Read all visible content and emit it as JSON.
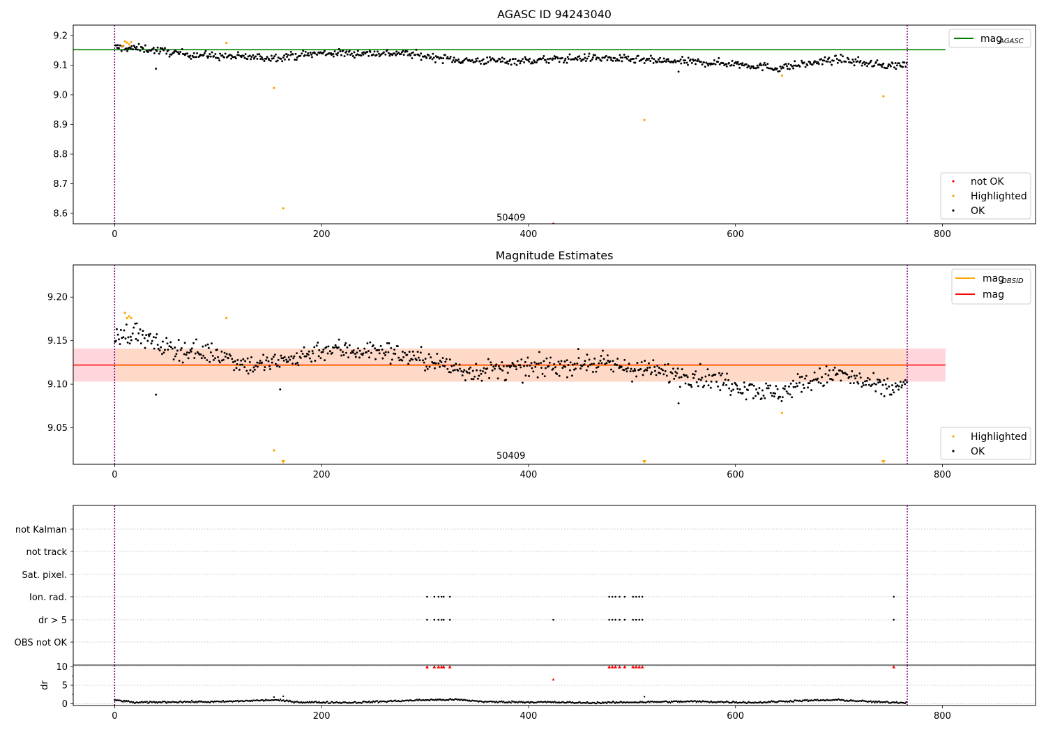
{
  "colors": {
    "ok": "#000000",
    "highlighted": "#ffa500",
    "not_ok": "#ff0000",
    "agasc_line": "#008000",
    "obsid_line": "#ffa500",
    "mag_line": "#ff0000",
    "band_outer": "#ffd6dc",
    "band_inner": "#ffd9c8",
    "event_line": "#800080"
  },
  "chart_data": [
    {
      "id": "agasc",
      "type": "scatter",
      "title": "AGASC ID 94243040",
      "xlim": [
        -40,
        890
      ],
      "ylim": [
        8.565,
        9.235
      ],
      "xticks": [
        0,
        200,
        400,
        600,
        800
      ],
      "yticks": [
        8.6,
        8.7,
        8.8,
        8.9,
        9.0,
        9.1,
        9.2
      ],
      "ytick_labels": [
        "8.6",
        "8.7",
        "8.8",
        "8.9",
        "9.0",
        "9.1",
        "9.2"
      ],
      "annotation": {
        "text": "50409",
        "x": 383,
        "y": 8.58
      },
      "vlines": [
        0,
        766
      ],
      "hlines": [
        {
          "name": "mag_AGASC",
          "y": 9.152,
          "x_range": [
            -40,
            803
          ]
        }
      ],
      "line_legend": {
        "placement": "top-right",
        "entries": [
          {
            "label": "mag",
            "sub": "AGASC",
            "color_key": "agasc_line"
          }
        ]
      },
      "point_legend": {
        "placement": "bottom-right",
        "entries": [
          {
            "label": "not OK",
            "color_key": "not_ok"
          },
          {
            "label": "Highlighted",
            "color_key": "highlighted"
          },
          {
            "label": "OK",
            "color_key": "ok"
          }
        ]
      },
      "trend": [
        [
          0,
          9.16
        ],
        [
          30,
          9.155
        ],
        [
          60,
          9.14
        ],
        [
          100,
          9.13
        ],
        [
          150,
          9.125
        ],
        [
          200,
          9.14
        ],
        [
          280,
          9.14
        ],
        [
          300,
          9.13
        ],
        [
          340,
          9.115
        ],
        [
          400,
          9.115
        ],
        [
          460,
          9.125
        ],
        [
          520,
          9.115
        ],
        [
          560,
          9.11
        ],
        [
          600,
          9.105
        ],
        [
          640,
          9.09
        ],
        [
          680,
          9.11
        ],
        [
          700,
          9.12
        ],
        [
          740,
          9.1
        ],
        [
          766,
          9.1
        ]
      ],
      "n_points": 760,
      "noise": 0.012,
      "highlighted": [
        [
          8,
          9.165
        ],
        [
          10,
          9.18
        ],
        [
          12,
          9.176
        ],
        [
          14,
          9.17
        ],
        [
          16,
          9.178
        ],
        [
          108,
          9.175
        ],
        [
          154,
          9.023
        ],
        [
          163,
          8.617
        ],
        [
          512,
          8.915
        ],
        [
          645,
          9.065
        ],
        [
          743,
          8.995
        ]
      ],
      "not_ok": [
        [
          424,
          8.565
        ]
      ],
      "outliers_ok": [
        [
          40,
          9.088
        ],
        [
          545,
          9.078
        ]
      ]
    },
    {
      "id": "estimates",
      "type": "scatter",
      "title": "Magnitude Estimates",
      "xlim": [
        -40,
        890
      ],
      "ylim": [
        9.008,
        9.237
      ],
      "xticks": [
        0,
        200,
        400,
        600,
        800
      ],
      "yticks": [
        9.05,
        9.1,
        9.15,
        9.2
      ],
      "ytick_labels": [
        "9.05",
        "9.10",
        "9.15",
        "9.20"
      ],
      "annotation": {
        "text": "50409",
        "x": 383,
        "y": 9.016
      },
      "vlines": [
        0,
        766
      ],
      "mag_line": {
        "y": 9.122,
        "x_range": [
          -40,
          803
        ]
      },
      "band_outer": {
        "y": [
          9.103,
          9.141
        ],
        "x_range": [
          -40,
          803
        ]
      },
      "band_inner": {
        "y": [
          9.103,
          9.141
        ],
        "x_range": [
          0,
          766
        ]
      },
      "line_legend": {
        "placement": "top-right",
        "entries": [
          {
            "label": "mag",
            "sub": "OBSID",
            "color_key": "obsid_line"
          },
          {
            "label": "mag",
            "sub": "",
            "color_key": "mag_line"
          }
        ]
      },
      "point_legend": {
        "placement": "bottom-right",
        "entries": [
          {
            "label": "Highlighted",
            "color_key": "highlighted"
          },
          {
            "label": "OK",
            "color_key": "ok"
          }
        ]
      },
      "trend": [
        [
          0,
          9.155
        ],
        [
          20,
          9.16
        ],
        [
          40,
          9.145
        ],
        [
          60,
          9.14
        ],
        [
          100,
          9.135
        ],
        [
          130,
          9.122
        ],
        [
          160,
          9.125
        ],
        [
          200,
          9.14
        ],
        [
          260,
          9.138
        ],
        [
          300,
          9.128
        ],
        [
          340,
          9.115
        ],
        [
          400,
          9.118
        ],
        [
          460,
          9.125
        ],
        [
          520,
          9.115
        ],
        [
          560,
          9.11
        ],
        [
          600,
          9.1
        ],
        [
          640,
          9.088
        ],
        [
          660,
          9.1
        ],
        [
          700,
          9.112
        ],
        [
          740,
          9.095
        ],
        [
          766,
          9.098
        ]
      ],
      "n_points": 760,
      "noise": 0.011,
      "highlighted": [
        [
          10,
          9.182
        ],
        [
          12,
          9.176
        ],
        [
          14,
          9.178
        ],
        [
          16,
          9.176
        ],
        [
          108,
          9.176
        ],
        [
          154,
          9.024
        ],
        [
          645,
          9.067
        ]
      ],
      "lower_limits": [
        163,
        512,
        743
      ],
      "outliers_ok": [
        [
          40,
          9.088
        ],
        [
          160,
          9.094
        ],
        [
          545,
          9.078
        ]
      ]
    },
    {
      "id": "flags",
      "type": "scatter",
      "xlim": [
        -40,
        890
      ],
      "rows": [
        "not Kalman",
        "not track",
        "Sat. pixel.",
        "Ion. rad.",
        "dr > 5",
        "OBS not OK"
      ],
      "vlines": [
        0,
        766
      ],
      "ion_rad_x": [
        302,
        309,
        313,
        316,
        318,
        324,
        478,
        481,
        484,
        488,
        493,
        501,
        504,
        507,
        510,
        753
      ],
      "dr_gt5_x": [
        302,
        309,
        313,
        316,
        318,
        324,
        424,
        478,
        481,
        484,
        488,
        493,
        501,
        504,
        507,
        510,
        753
      ]
    },
    {
      "id": "dr",
      "type": "scatter",
      "ylabel": "dr",
      "xlim": [
        -40,
        890
      ],
      "ylim": [
        -0.5,
        10.5
      ],
      "xticks": [
        0,
        200,
        400,
        600,
        800
      ],
      "yticks": [
        0,
        5,
        10
      ],
      "ytick_labels": [
        "0",
        "5",
        "10"
      ],
      "vlines": [
        0,
        766
      ],
      "clipped_x": [
        302,
        309,
        313,
        316,
        318,
        324,
        478,
        481,
        484,
        488,
        493,
        501,
        504,
        507,
        510,
        753
      ],
      "mid_points": [
        [
          424,
          6.6
        ]
      ],
      "extra_points": [
        [
          154,
          1.8
        ],
        [
          163,
          2.0
        ],
        [
          512,
          1.9
        ]
      ],
      "trend": [
        [
          0,
          1.0
        ],
        [
          20,
          0.3
        ],
        [
          60,
          0.5
        ],
        [
          100,
          0.5
        ],
        [
          154,
          1.0
        ],
        [
          180,
          0.4
        ],
        [
          230,
          0.3
        ],
        [
          300,
          1.0
        ],
        [
          330,
          1.1
        ],
        [
          360,
          0.5
        ],
        [
          420,
          0.4
        ],
        [
          460,
          0.2
        ],
        [
          500,
          0.4
        ],
        [
          560,
          0.6
        ],
        [
          620,
          0.3
        ],
        [
          660,
          0.8
        ],
        [
          700,
          1.0
        ],
        [
          740,
          0.4
        ],
        [
          766,
          0.3
        ]
      ],
      "n_points": 760
    }
  ]
}
